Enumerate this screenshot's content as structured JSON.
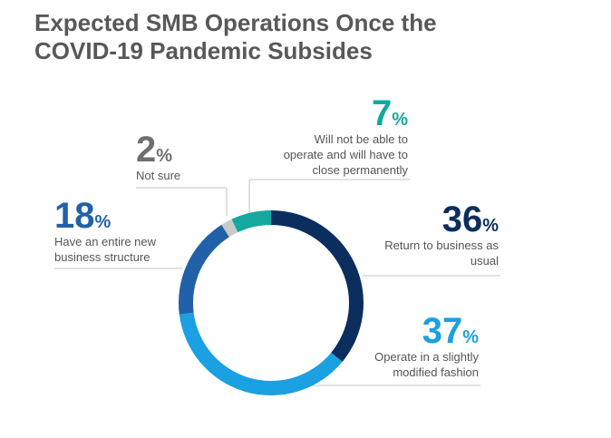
{
  "chart_data": {
    "type": "pie",
    "donut": true,
    "title": "Expected SMB Operations Once the COVID-19 Pandemic Subsides",
    "categories": [
      "Return to business as usual",
      "Operate in a slightly modified fashion",
      "Have an entire new business structure",
      "Not sure",
      "Will not be able to operate and will have to close permanently"
    ],
    "values": [
      36,
      37,
      18,
      2,
      7
    ],
    "value_suffix": "%",
    "colors": [
      "#0b2e5e",
      "#1ba0e2",
      "#2161a9",
      "#c9c9c9",
      "#14a89e"
    ],
    "label_colors": [
      "#0b2e5e",
      "#1ba0e2",
      "#2161a9",
      "#6f6f6f",
      "#14a89e"
    ]
  }
}
